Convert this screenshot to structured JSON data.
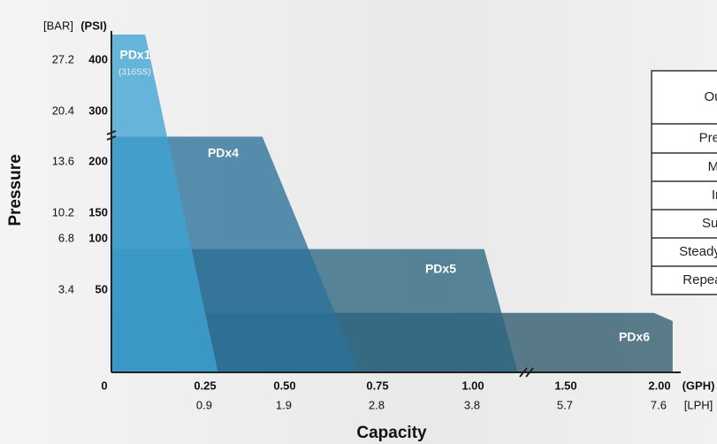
{
  "chart_data": {
    "type": "envelope",
    "y_title": "Pressure",
    "x_title": "Capacity",
    "y_unit": "(PSI)",
    "y2_unit": "[BAR]",
    "x_unit": "(GPH)",
    "x2_unit": "[LPH]",
    "xticks": [
      0,
      0.25,
      {
        "value": 0.5,
        "label": "0.50"
      },
      0.75,
      {
        "value": 1,
        "label": "1.00"
      },
      {
        "value": 1.5,
        "label": "1.50"
      },
      {
        "value": 2,
        "label": "2.00"
      }
    ],
    "x2ticks": [
      0.9,
      1.9,
      2.8,
      3.8,
      5.7,
      7.6
    ],
    "yticks": [
      50,
      100,
      150,
      200,
      300,
      400
    ],
    "y2ticks": [
      3.4,
      6.8,
      10.2,
      13.6,
      20.4,
      27.2
    ],
    "series": [
      {
        "name": "PDx6",
        "color": "#2e5a6c",
        "x": [
          0,
          1.97,
          2.07,
          2.07
        ],
        "values": [
          36,
          36,
          31,
          0
        ]
      },
      {
        "name": "PDx5",
        "color": "#2d6581",
        "x": [
          0,
          1.06,
          1.24
        ],
        "values": [
          90,
          90,
          0
        ]
      },
      {
        "name": "PDx4",
        "color": "#2b7199",
        "x": [
          0,
          0.43,
          0.7
        ],
        "values": [
          250,
          250,
          0
        ]
      },
      {
        "name": "PDx1",
        "note": "(316SS)",
        "color": "#3fa3d3",
        "x": [
          0,
          0.09,
          0.29
        ],
        "values": [
          450,
          450,
          0
        ]
      }
    ]
  },
  "table": {
    "rows": [
      "Outp",
      "Press",
      "Max",
      "Inst",
      "Supp",
      "Steady S",
      "Repeata"
    ]
  }
}
